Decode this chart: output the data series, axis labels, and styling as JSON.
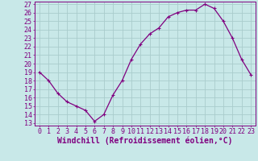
{
  "x": [
    0,
    1,
    2,
    3,
    4,
    5,
    6,
    7,
    8,
    9,
    10,
    11,
    12,
    13,
    14,
    15,
    16,
    17,
    18,
    19,
    20,
    21,
    22,
    23
  ],
  "y": [
    19.0,
    18.0,
    16.5,
    15.5,
    15.0,
    14.5,
    13.2,
    14.0,
    16.3,
    18.0,
    20.5,
    22.3,
    23.5,
    24.2,
    25.5,
    26.0,
    26.3,
    26.3,
    27.0,
    26.5,
    25.0,
    23.0,
    20.5,
    18.7
  ],
  "line_color": "#800080",
  "marker": "+",
  "bg_color": "#c8e8e8",
  "grid_color": "#aacccc",
  "xlabel": "Windchill (Refroidissement éolien,°C)",
  "ylim": [
    13,
    27
  ],
  "xlim": [
    -0.5,
    23.5
  ],
  "yticks": [
    13,
    14,
    15,
    16,
    17,
    18,
    19,
    20,
    21,
    22,
    23,
    24,
    25,
    26,
    27
  ],
  "xticks": [
    0,
    1,
    2,
    3,
    4,
    5,
    6,
    7,
    8,
    9,
    10,
    11,
    12,
    13,
    14,
    15,
    16,
    17,
    18,
    19,
    20,
    21,
    22,
    23
  ],
  "tick_color": "#800080",
  "axis_color": "#800080",
  "tick_fontsize": 6.0,
  "label_fontsize": 7.0,
  "linewidth": 0.9,
  "markersize": 3.5,
  "markeredgewidth": 0.8
}
